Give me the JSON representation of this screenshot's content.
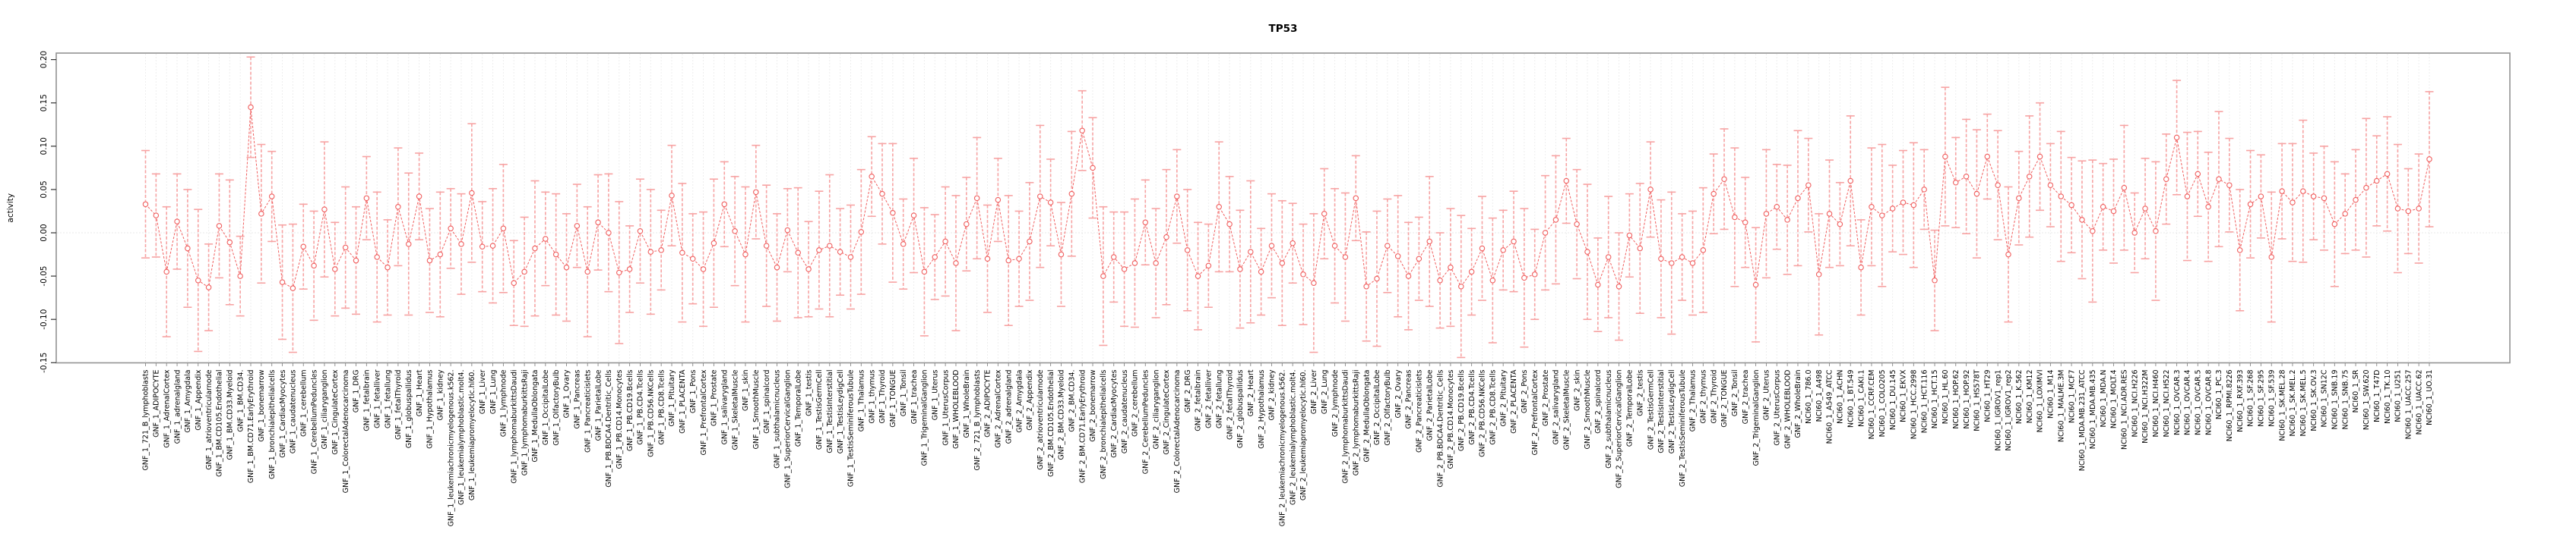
{
  "title": "TP53",
  "chart_data": {
    "type": "line",
    "subtype": "points-with-error-bars",
    "title": "TP53",
    "xlabel": "",
    "ylabel": "activity",
    "ylim": [
      -0.15,
      0.2075
    ],
    "yticks": [
      "0.20",
      "0.15",
      "0.10",
      "0.05",
      "0.00",
      "-0.05",
      "-0.10",
      "-0.15"
    ],
    "ytick_values": [
      0.2,
      0.15,
      0.1,
      0.05,
      0.0,
      -0.05,
      -0.1,
      -0.15
    ],
    "grid": "vertical dotted gridline per category, dotted horizontal line at 0, no legend",
    "colors": {
      "point": "#f05f5f",
      "connector_line": "#f05f5f",
      "error_bar": "#f7a3a3",
      "border": "#939393",
      "gridline": "#dcdcdc",
      "text": "#000000",
      "background": "#ffffff"
    },
    "categories": [
      "GNF_1_721_B_lymphoblasts",
      "GNF_1_ADIPOCYTE",
      "GNF_1_AdrenalCortex",
      "GNF_1_adrenalgland",
      "GNF_1_Amygdala",
      "GNF_1_Appendix",
      "GNF_1_atrioventricularnode",
      "GNF_1_BM.CD105.Endothelial",
      "GNF_1_BM.CD33.Myeloid",
      "GNF_1_BM.CD34.",
      "GNF_1_BM.CD71.EarlyErythroid",
      "GNF_1_bonemarrow",
      "GNF_1_bronchialepithelialcells",
      "GNF_1_CardiacMyocytes",
      "GNF_1_caudatenucleus",
      "GNF_1_cerebellum",
      "GNF_1_CerebellumPeduncles",
      "GNF_1_ciliaryganglion",
      "GNF_1_CingulateCortex",
      "GNF_1_ColorectalAdenocarcinoma",
      "GNF_1_DRG",
      "GNF_1_fetalbrain",
      "GNF_1_fetalliver",
      "GNF_1_fetallung",
      "GNF_1_fetalThyroid",
      "GNF_1_globuspallidus",
      "GNF_1_Heart",
      "GNF_1_Hypothalamus",
      "GNF_1_kidney",
      "GNF_1_leukemiachronicmyelogenous.k562.",
      "GNF_1_leukemialymphoblastic.molt4.",
      "GNF_1_leukemiapromyelocytic.hl60.",
      "GNF_1_Liver",
      "GNF_1_Lung",
      "GNF_1_lymphnode",
      "GNF_1_lymphomaburkittsDaudi",
      "GNF_1_lymphomaburkittsRaji",
      "GNF_1_MedullaOblongata",
      "GNF_1_OccipitalLobe",
      "GNF_1_OlfactoryBulb",
      "GNF_1_Ovary",
      "GNF_1_Pancreas",
      "GNF_1_Pancreaticislets",
      "GNF_1_ParietalLobe",
      "GNF_1_PB.BDCA4.Dentritic_Cells",
      "GNF_1_PB.CD14.Monocytes",
      "GNF_1_PB.CD19.Bcells",
      "GNF_1_PB.CD4.Tcells",
      "GNF_1_PB.CD56.NKCells",
      "GNF_1_PB.CD8.Tcells",
      "GNF_1_Pituitary",
      "GNF_1_PLACENTA",
      "GNF_1_Pons",
      "GNF_1_PrefrontalCortex",
      "GNF_1_Prostate",
      "GNF_1_salivarygland",
      "GNF_1_SkeletalMuscle",
      "GNF_1_skin",
      "GNF_1_SmoothMuscle",
      "GNF_1_spinalcord",
      "GNF_1_subthalamicnucleus",
      "GNF_1_SuperiorCervicalGanglion",
      "GNF_1_TemporalLobe",
      "GNF_1_testis",
      "GNF_1_TestisGermCell",
      "GNF_1_TestisInterstitial",
      "GNF_1_TestisLeydigCell",
      "GNF_1_TestisSeminiferousTubule",
      "GNF_1_Thalamus",
      "GNF_1_thymus",
      "GNF_1_Thyroid",
      "GNF_1_TONGUE",
      "GNF_1_Tonsil",
      "GNF_1_trachea",
      "GNF_1_TrigeminalGanglion",
      "GNF_1_Uterus",
      "GNF_1_UterusCorpus",
      "GNF_1_WHOLEBLOOD",
      "GNF_1_WholeBrain",
      "GNF_2_721_B_lymphoblasts",
      "GNF_2_ADIPOCYTE",
      "GNF_2_AdrenalCortex",
      "GNF_2_adrenalgland",
      "GNF_2_Amygdala",
      "GNF_2_Appendix",
      "GNF_2_atrioventricularnode",
      "GNF_2_BM.CD105.Endothelial",
      "GNF_2_BM.CD33.Myeloid",
      "GNF_2_BM.CD34.",
      "GNF_2_BM.CD71.EarlyErythroid",
      "GNF_2_bonemarrow",
      "GNF_2_bronchialepithelialcells",
      "GNF_2_CardiacMyocytes",
      "GNF_2_caudatenucleus",
      "GNF_2_cerebellum",
      "GNF_2_CerebellumPeduncles",
      "GNF_2_ciliaryganglion",
      "GNF_2_CingulateCortex",
      "GNF_2_ColorectalAdenocarcinoma",
      "GNF_2_DRG",
      "GNF_2_fetalbrain",
      "GNF_2_fetalliver",
      "GNF_2_fetallung",
      "GNF_2_fetalThyroid",
      "GNF_2_globuspallidus",
      "GNF_2_Heart",
      "GNF_2_Hypothalamus",
      "GNF_2_kidney",
      "GNF_2_leukemiachronicmyelogenous.k562.",
      "GNF_2_leukemialymphoblastic.molt4.",
      "GNF_2_leukemiapromyelocytic.hl60.",
      "GNF_2_Liver",
      "GNF_2_Lung",
      "GNF_2_lymphnode",
      "GNF_2_lymphomaburkittsDaudi",
      "GNF_2_lymphomaburkittsRaji",
      "GNF_2_MedullaOblongata",
      "GNF_2_OccipitalLobe",
      "GNF_2_OlfactoryBulb",
      "GNF_2_Ovary",
      "GNF_2_Pancreas",
      "GNF_2_Pancreaticislets",
      "GNF_2_ParietalLobe",
      "GNF_2_PB.BDCA4.Dentritic_Cells",
      "GNF_2_PB.CD14.Monocytes",
      "GNF_2_PB.CD19.Bcells",
      "GNF_2_PB.CD4.Tcells",
      "GNF_2_PB.CD56.NKCells",
      "GNF_2_PB.CD8.Tcells",
      "GNF_2_Pituitary",
      "GNF_2_PLACENTA",
      "GNF_2_Pons",
      "GNF_2_PrefrontalCortex",
      "GNF_2_Prostate",
      "GNF_2_salivarygland",
      "GNF_2_SkeletalMuscle",
      "GNF_2_skin",
      "GNF_2_SmoothMuscle",
      "GNF_2_spinalcord",
      "GNF_2_subthalamicnucleus",
      "GNF_2_SuperiorCervicalGanglion",
      "GNF_2_TemporalLobe",
      "GNF_2_testis",
      "GNF_2_TestisGermCell",
      "GNF_2_TestisInterstitial",
      "GNF_2_TestisLeydigCell",
      "GNF_2_TestisSeminiferousTubule",
      "GNF_2_Thalamus",
      "GNF_2_thymus",
      "GNF_2_Thyroid",
      "GNF_2_TONGUE",
      "GNF_2_Tonsil",
      "GNF_2_trachea",
      "GNF_2_TrigeminalGanglion",
      "GNF_2_Uterus",
      "GNF_2_UterusCorpus",
      "GNF_2_WHOLEBLOOD",
      "GNF_2_WholeBrain",
      "NCI60_1_786.0",
      "NCI60_1_A498",
      "NCI60_1_A549_ATCC",
      "NCI60_1_ACHN",
      "NCI60_1_BT.549",
      "NCI60_1_CAKI.1",
      "NCI60_1_CCRF.CEM",
      "NCI60_1_COLO205",
      "NCI60_1_DU.145",
      "NCI60_1_EKVX",
      "NCI60_1_HCC.2998",
      "NCI60_1_HCT.116",
      "NCI60_1_HCT.15",
      "NCI60_1_HL.60",
      "NCI60_1_HOP.62",
      "NCI60_1_HOP.92",
      "NCI60_1_HS578T",
      "NCI60_1_HT29",
      "NCI60_1_IGROV1_rep1",
      "NCI60_1_IGROV1_rep2",
      "NCI60_1_K.562",
      "NCI60_1_KM12",
      "NCI60_1_LOXIMVI",
      "NCI60_1_M14",
      "NCI60_1_MALME.3M",
      "NCI60_1_MCF7",
      "NCI60_1_MDA.MB.231_ATCC",
      "NCI60_1_MDA.MB.435",
      "NCI60_1_MDA.N",
      "NCI60_1_MOLT.4",
      "NCI60_1_NCI.ADR.RES",
      "NCI60_1_NCI.H226",
      "NCI60_1_NCI.H322M",
      "NCI60_1_NCI.H460",
      "NCI60_1_NCI.H522",
      "NCI60_1_OVCAR.3",
      "NCI60_1_OVCAR.4",
      "NCI60_1_OVCAR.5",
      "NCI60_1_OVCAR.8",
      "NCI60_1_PC.3",
      "NCI60_1_RPMI.8226",
      "NCI60_1_RXF.393",
      "NCI60_1_SF.268",
      "NCI60_1_SF.295",
      "NCI60_1_SF.539",
      "NCI60_1_SK.MEL.28",
      "NCI60_1_SK.MEL.2",
      "NCI60_1_SK.MEL.5",
      "NCI60_1_SK.OV.3",
      "NCI60_1_SN12C",
      "NCI60_1_SNB.19",
      "NCI60_1_SNB.75",
      "NCI60_1_SR",
      "NCI60_1_SW.620",
      "NCI60_1_T47D",
      "NCI60_1_TK.10",
      "NCI60_1_U251",
      "NCI60_1_UACC.257",
      "NCI60_1_UACC.62",
      "NCI60_1_UO.31"
    ],
    "values": [
      0.033,
      0.02,
      -0.045,
      0.013,
      -0.018,
      -0.055,
      -0.063,
      0.008,
      -0.011,
      -0.05,
      0.145,
      0.022,
      0.042,
      -0.057,
      -0.064,
      -0.016,
      -0.038,
      0.027,
      -0.042,
      -0.017,
      -0.032,
      0.04,
      -0.028,
      -0.04,
      0.03,
      -0.013,
      0.042,
      -0.032,
      -0.025,
      0.005,
      -0.013,
      0.046,
      -0.016,
      -0.015,
      0.005,
      -0.058,
      -0.045,
      -0.018,
      -0.007,
      -0.025,
      -0.04,
      0.008,
      -0.045,
      0.012,
      0.0,
      -0.046,
      -0.042,
      0.002,
      -0.022,
      -0.02,
      0.043,
      -0.023,
      -0.03,
      -0.042,
      -0.012,
      0.033,
      0.002,
      -0.025,
      0.047,
      -0.015,
      -0.04,
      0.003,
      -0.023,
      -0.042,
      -0.02,
      -0.015,
      -0.022,
      -0.028,
      0.001,
      0.065,
      0.045,
      0.023,
      -0.013,
      0.02,
      -0.045,
      -0.028,
      -0.01,
      -0.035,
      0.01,
      0.04,
      -0.03,
      0.038,
      -0.032,
      -0.03,
      -0.01,
      0.042,
      0.035,
      -0.025,
      0.045,
      0.118,
      0.075,
      -0.05,
      -0.028,
      -0.042,
      -0.035,
      0.012,
      -0.035,
      -0.005,
      0.042,
      -0.02,
      -0.05,
      -0.038,
      0.03,
      0.01,
      -0.042,
      -0.022,
      -0.045,
      -0.015,
      -0.035,
      -0.012,
      -0.048,
      -0.058,
      0.022,
      -0.015,
      -0.028,
      0.04,
      -0.062,
      -0.053,
      -0.015,
      -0.027,
      -0.05,
      -0.03,
      -0.01,
      -0.055,
      -0.04,
      -0.062,
      -0.045,
      -0.018,
      -0.055,
      -0.02,
      -0.01,
      -0.052,
      -0.048,
      0.0,
      0.015,
      0.06,
      0.01,
      -0.022,
      -0.06,
      -0.028,
      -0.062,
      -0.003,
      -0.018,
      0.05,
      -0.03,
      -0.035,
      -0.028,
      -0.035,
      -0.02,
      0.045,
      0.062,
      0.018,
      0.012,
      -0.06,
      0.022,
      0.03,
      0.015,
      0.04,
      0.055,
      -0.048,
      0.022,
      0.01,
      0.06,
      -0.04,
      0.03,
      0.02,
      0.028,
      0.035,
      0.032,
      0.05,
      -0.055,
      0.088,
      0.058,
      0.065,
      0.045,
      0.088,
      0.055,
      -0.025,
      0.04,
      0.065,
      0.088,
      0.055,
      0.042,
      0.032,
      0.015,
      0.002,
      0.03,
      0.025,
      0.052,
      0.0,
      0.028,
      0.002,
      0.062,
      0.11,
      0.042,
      0.068,
      0.03,
      0.062,
      0.055,
      -0.02,
      0.033,
      0.042,
      -0.028,
      0.048,
      0.035,
      0.048,
      0.042,
      0.04,
      0.01,
      0.022,
      0.038,
      0.052,
      0.06,
      0.068,
      0.028,
      0.025,
      0.028,
      0.085
    ],
    "errors": [
      0.062,
      0.048,
      0.075,
      0.055,
      0.068,
      0.082,
      0.05,
      0.06,
      0.072,
      0.046,
      0.058,
      0.08,
      0.052,
      0.066,
      0.074,
      0.049,
      0.063,
      0.078,
      0.054,
      0.07,
      0.062,
      0.048,
      0.075,
      0.055,
      0.068,
      0.082,
      0.05,
      0.06,
      0.072,
      0.046,
      0.058,
      0.08,
      0.052,
      0.066,
      0.074,
      0.049,
      0.063,
      0.078,
      0.054,
      0.07,
      0.062,
      0.048,
      0.075,
      0.055,
      0.068,
      0.082,
      0.05,
      0.06,
      0.072,
      0.046,
      0.058,
      0.08,
      0.052,
      0.066,
      0.074,
      0.049,
      0.063,
      0.078,
      0.054,
      0.07,
      0.062,
      0.048,
      0.075,
      0.055,
      0.068,
      0.082,
      0.05,
      0.06,
      0.072,
      0.046,
      0.058,
      0.08,
      0.052,
      0.066,
      0.074,
      0.049,
      0.063,
      0.078,
      0.054,
      0.07,
      0.062,
      0.048,
      0.075,
      0.055,
      0.068,
      0.082,
      0.05,
      0.06,
      0.072,
      0.046,
      0.058,
      0.08,
      0.052,
      0.066,
      0.074,
      0.049,
      0.063,
      0.078,
      0.054,
      0.07,
      0.062,
      0.048,
      0.075,
      0.055,
      0.068,
      0.082,
      0.05,
      0.06,
      0.072,
      0.046,
      0.058,
      0.08,
      0.052,
      0.066,
      0.074,
      0.049,
      0.063,
      0.078,
      0.054,
      0.07,
      0.062,
      0.048,
      0.075,
      0.055,
      0.068,
      0.082,
      0.05,
      0.06,
      0.072,
      0.046,
      0.058,
      0.08,
      0.052,
      0.066,
      0.074,
      0.049,
      0.063,
      0.078,
      0.054,
      0.07,
      0.062,
      0.048,
      0.075,
      0.055,
      0.068,
      0.082,
      0.05,
      0.06,
      0.072,
      0.046,
      0.058,
      0.08,
      0.052,
      0.066,
      0.074,
      0.049,
      0.063,
      0.078,
      0.054,
      0.07,
      0.062,
      0.048,
      0.075,
      0.055,
      0.068,
      0.082,
      0.05,
      0.06,
      0.072,
      0.046,
      0.058,
      0.08,
      0.052,
      0.066,
      0.074,
      0.049,
      0.063,
      0.078,
      0.054,
      0.07,
      0.062,
      0.048,
      0.075,
      0.055,
      0.068,
      0.082,
      0.05,
      0.06,
      0.072,
      0.046,
      0.058,
      0.08,
      0.052,
      0.066,
      0.074,
      0.049,
      0.063,
      0.078,
      0.054,
      0.07,
      0.062,
      0.048,
      0.075,
      0.055,
      0.068,
      0.082,
      0.05,
      0.06,
      0.072,
      0.046,
      0.058,
      0.08,
      0.052,
      0.066,
      0.074,
      0.049,
      0.063,
      0.078
    ]
  }
}
